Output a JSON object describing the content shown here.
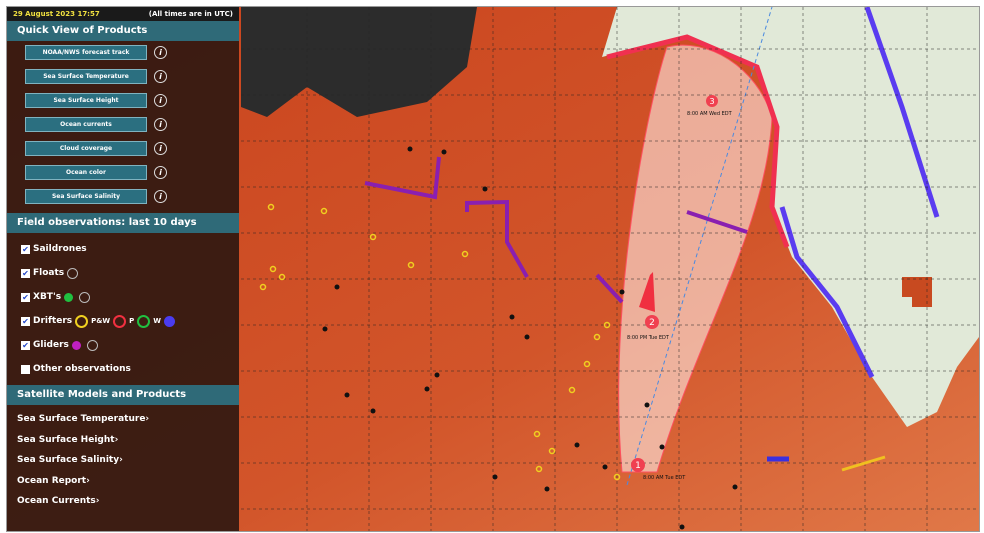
{
  "header": {
    "date": "29 August 2023 17:57",
    "note": "(All times are in UTC)"
  },
  "quick_view": {
    "title": "Quick View of Products",
    "buttons": [
      "NOAA/NWS forecast track",
      "Sea Surface Temperature",
      "Sea Surface Height",
      "Ocean currents",
      "Cloud coverage",
      "Ocean color",
      "Sea Surface Salinity"
    ]
  },
  "field_observations": {
    "title": "Field observations: last 10 days",
    "items": [
      "Saildrones",
      "Floats",
      "XBT's",
      "Drifters",
      "Gliders",
      "Other observations"
    ],
    "drifter_legend": [
      "P&W",
      "P",
      "W"
    ]
  },
  "satellite": {
    "title": "Satellite Models and Products",
    "links": [
      "Sea Surface Temperature",
      "Sea Surface Height",
      "Sea Surface Salinity",
      "Ocean Report",
      "Ocean Currents"
    ]
  },
  "map": {
    "markers": [
      {
        "number": "1",
        "time": "8:00 AM Tue EDT"
      },
      {
        "number": "2",
        "time": "8:00 PM Tue EDT"
      },
      {
        "number": "3",
        "time": "8:00 AM Wed EDT"
      }
    ]
  }
}
